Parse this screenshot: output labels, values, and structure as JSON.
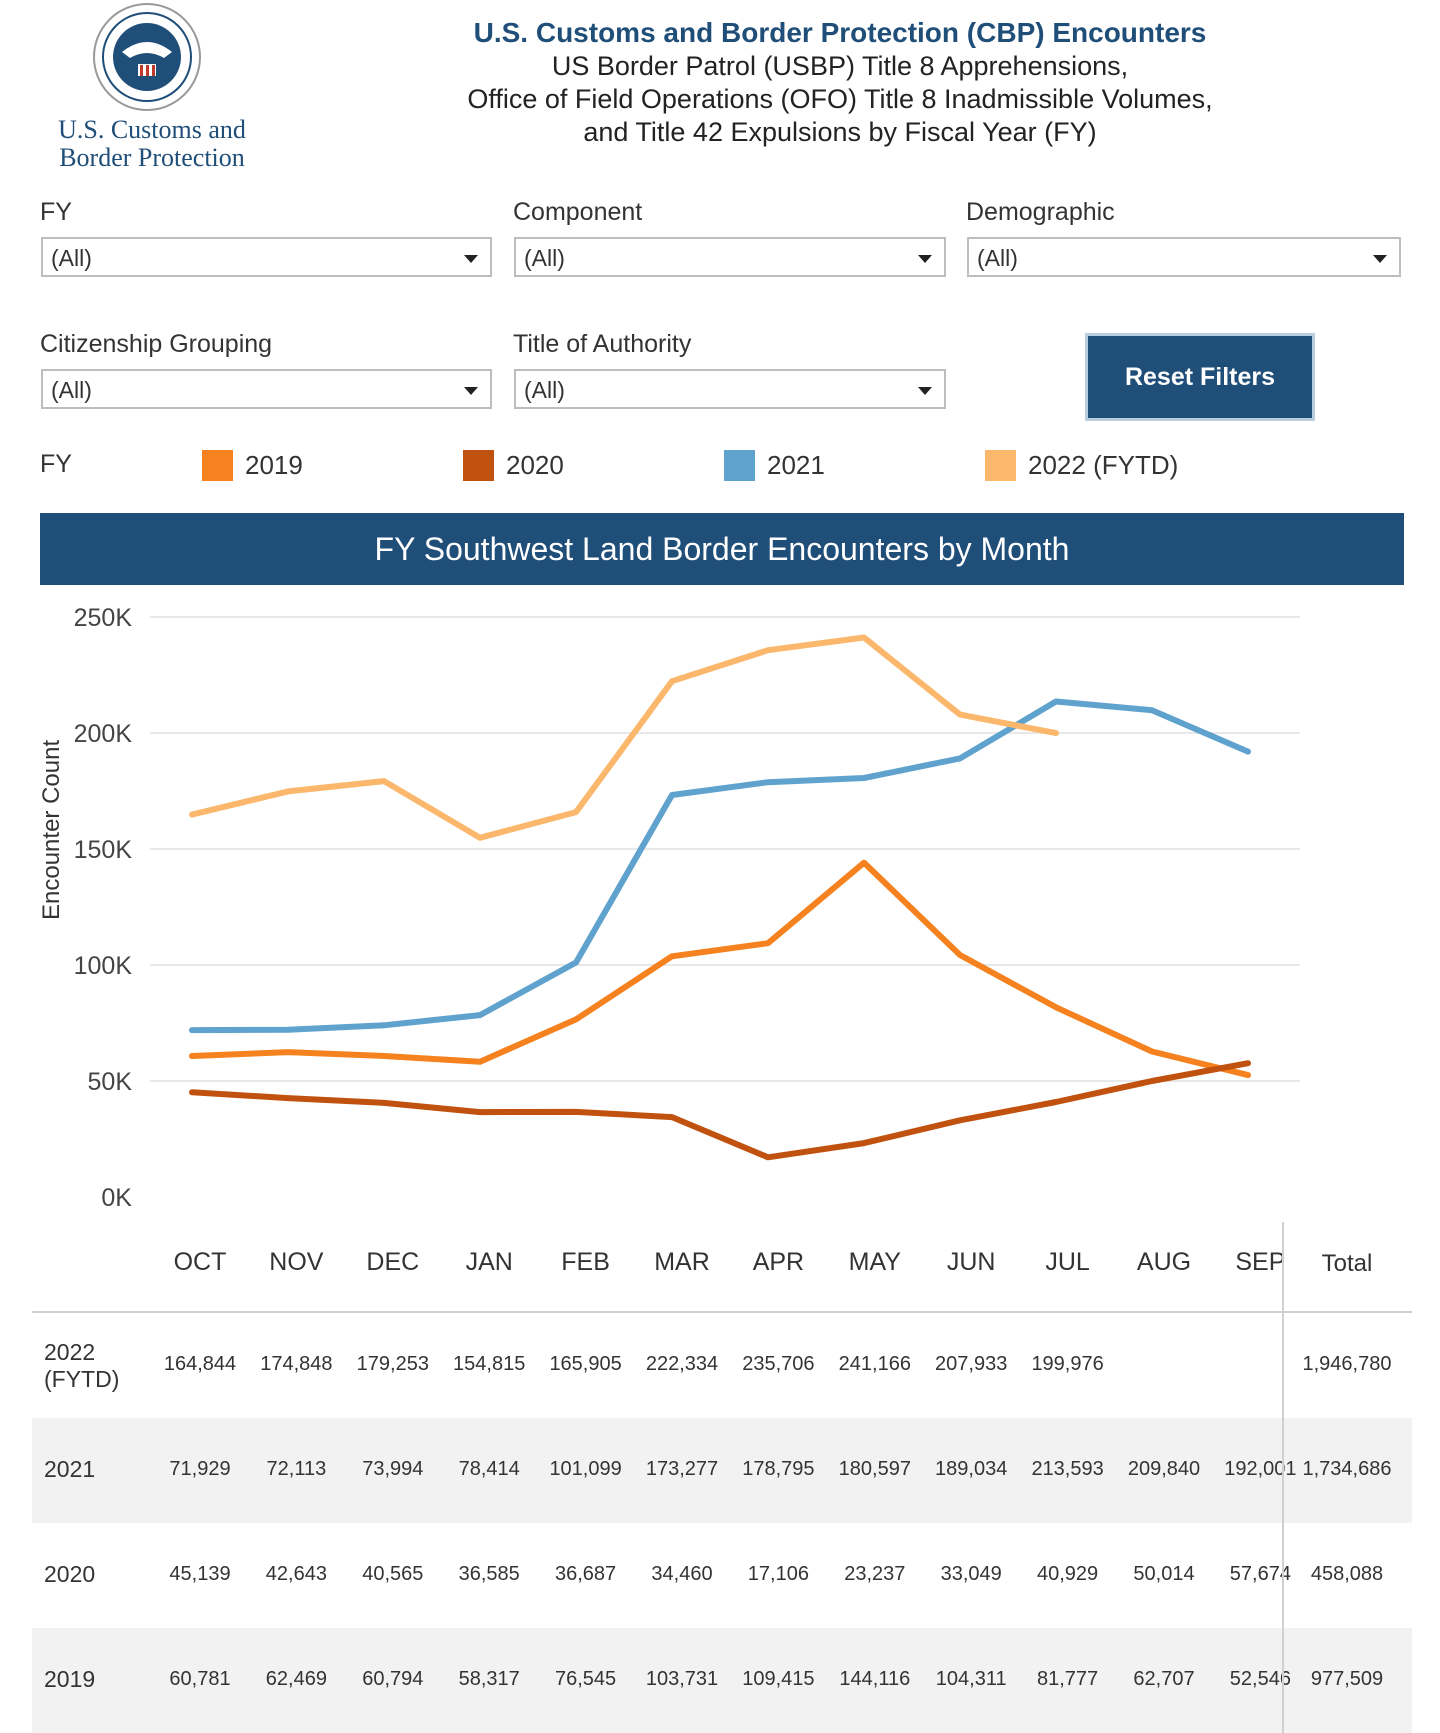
{
  "logo": {
    "brand_line1": "U.S. Customs and",
    "brand_line2": "Border Protection"
  },
  "header": {
    "title": "U.S. Customs and Border Protection (CBP) Encounters",
    "sub1": "US Border Patrol (USBP) Title 8 Apprehensions,",
    "sub2": "Office of Field Operations (OFO) Title 8 Inadmissible Volumes,",
    "sub3": "and Title 42 Expulsions by Fiscal Year (FY)"
  },
  "filters": {
    "fy": {
      "label": "FY",
      "value": "(All)"
    },
    "component": {
      "label": "Component",
      "value": "(All)"
    },
    "demographic": {
      "label": "Demographic",
      "value": "(All)"
    },
    "citizenship": {
      "label": "Citizenship Grouping",
      "value": "(All)"
    },
    "title_authority": {
      "label": "Title of Authority",
      "value": "(All)"
    },
    "reset_label": "Reset Filters"
  },
  "legend": {
    "title": "FY",
    "items": [
      {
        "label": "2019",
        "color": "#f5821f"
      },
      {
        "label": "2020",
        "color": "#c1510e"
      },
      {
        "label": "2021",
        "color": "#5fa2ce"
      },
      {
        "label": "2022 (FYTD)",
        "color": "#fbb86d"
      }
    ]
  },
  "chart_data": {
    "type": "line",
    "title": "FY Southwest Land Border Encounters by Month",
    "ylabel": "Encounter Count",
    "ylim": [
      0,
      250000
    ],
    "yticks": [
      "0K",
      "50K",
      "100K",
      "150K",
      "200K",
      "250K"
    ],
    "categories": [
      "OCT",
      "NOV",
      "DEC",
      "JAN",
      "FEB",
      "MAR",
      "APR",
      "MAY",
      "JUN",
      "JUL",
      "AUG",
      "SEP"
    ],
    "grid": true,
    "series": [
      {
        "name": "2022 (FYTD)",
        "color": "#fbb86d",
        "values": [
          164844,
          174848,
          179253,
          154815,
          165905,
          222334,
          235706,
          241166,
          207933,
          199976,
          null,
          null
        ]
      },
      {
        "name": "2021",
        "color": "#5fa2ce",
        "values": [
          71929,
          72113,
          73994,
          78414,
          101099,
          173277,
          178795,
          180597,
          189034,
          213593,
          209840,
          192001
        ]
      },
      {
        "name": "2020",
        "color": "#c1510e",
        "values": [
          45139,
          42643,
          40565,
          36585,
          36687,
          34460,
          17106,
          23237,
          33049,
          40929,
          50014,
          57674
        ]
      },
      {
        "name": "2019",
        "color": "#f5821f",
        "values": [
          60781,
          62469,
          60794,
          58317,
          76545,
          103731,
          109415,
          144116,
          104311,
          81777,
          62707,
          52546
        ]
      }
    ]
  },
  "table": {
    "total_header": "Total",
    "rows": [
      {
        "label1": "2022",
        "label2": "(FYTD)",
        "values": [
          "164,844",
          "174,848",
          "179,253",
          "154,815",
          "165,905",
          "222,334",
          "235,706",
          "241,166",
          "207,933",
          "199,976",
          "",
          ""
        ],
        "total": "1,946,780"
      },
      {
        "label1": "2021",
        "label2": "",
        "values": [
          "71,929",
          "72,113",
          "73,994",
          "78,414",
          "101,099",
          "173,277",
          "178,795",
          "180,597",
          "189,034",
          "213,593",
          "209,840",
          "192,001"
        ],
        "total": "1,734,686"
      },
      {
        "label1": "2020",
        "label2": "",
        "values": [
          "45,139",
          "42,643",
          "40,565",
          "36,585",
          "36,687",
          "34,460",
          "17,106",
          "23,237",
          "33,049",
          "40,929",
          "50,014",
          "57,674"
        ],
        "total": "458,088"
      },
      {
        "label1": "2019",
        "label2": "",
        "values": [
          "60,781",
          "62,469",
          "60,794",
          "58,317",
          "76,545",
          "103,731",
          "109,415",
          "144,116",
          "104,311",
          "81,777",
          "62,707",
          "52,546"
        ],
        "total": "977,509"
      }
    ]
  }
}
